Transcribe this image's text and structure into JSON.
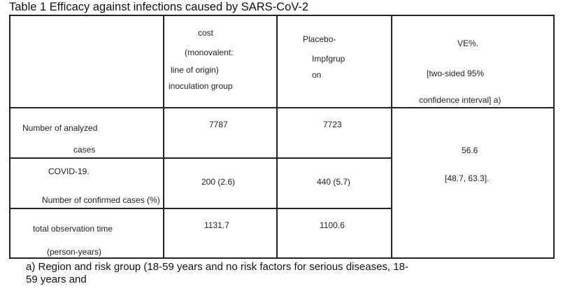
{
  "caption": "Table 1 Efficacy against infections caused by SARS-CoV-2",
  "header": {
    "col1": [
      "cost",
      "(monovalent:",
      "line of origin)",
      "inoculation group"
    ],
    "col2": [
      "Placebo-",
      "Impfgrup",
      "on"
    ],
    "col3": [
      "VE%.",
      "[two-sided 95%",
      "confidence interval] a)"
    ]
  },
  "rows": [
    {
      "label": [
        "Number of analyzed",
        "cases"
      ],
      "vaccine": "7787",
      "placebo": "7723"
    },
    {
      "label": [
        "COVID-19.",
        "Number of confirmed cases (%)"
      ],
      "vaccine": "200 (2.6)",
      "placebo": "440 (5.7)"
    },
    {
      "label": [
        "total observation time",
        "(person-years)"
      ],
      "vaccine": "1131.7",
      "placebo": "1100.6"
    }
  ],
  "ve": {
    "value": "56.6",
    "ci": "[48.7, 63.3]."
  },
  "footnote": [
    "a) Region and risk group (18-59 years and no risk factors for serious diseases, 18-",
    "59 years and"
  ]
}
